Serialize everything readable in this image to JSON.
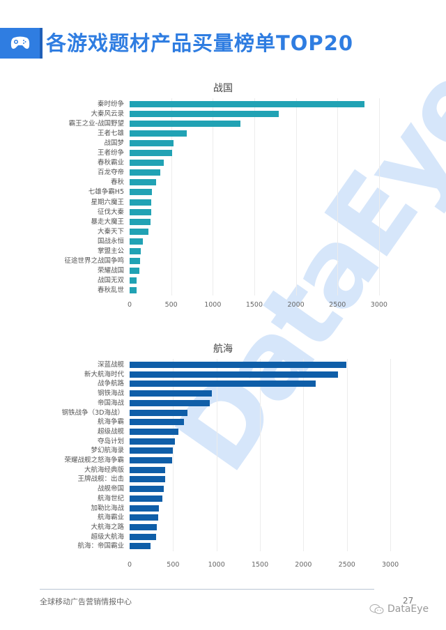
{
  "header": {
    "icon": "gamepad-icon",
    "title": "各游戏题材产品买量榜单TOP20",
    "accent_color": "#2f7de1"
  },
  "watermark": "DataEye",
  "chart_data": [
    {
      "type": "bar",
      "orientation": "horizontal",
      "title": "战国",
      "color": "#21a2b4",
      "xlim": [
        0,
        3000
      ],
      "xticks": [
        0,
        500,
        1000,
        1500,
        2000,
        2500,
        3000
      ],
      "grid": true,
      "categories": [
        "秦时纷争",
        "大秦风云录",
        "霸王之业-战国野望",
        "王者七雄",
        "战国梦",
        "王者纷争",
        "春秋霸业",
        "百龙夺帝",
        "春秋",
        "七雄争霸H5",
        "星期六魔王",
        "征伐大秦",
        "暴走大魔王",
        "大秦天下",
        "国战永恒",
        "掌盟主公",
        "征途世界之战国争鸣",
        "荣耀战国",
        "战国无双",
        "春秋乱世"
      ],
      "values": [
        2825,
        1794,
        1333,
        687,
        528,
        511,
        411,
        369,
        319,
        268,
        262,
        260,
        251,
        229,
        159,
        134,
        126,
        117,
        84,
        84
      ]
    },
    {
      "type": "bar",
      "orientation": "horizontal",
      "title": "航海",
      "color": "#0f5ea8",
      "xlim": [
        0,
        3000
      ],
      "xticks": [
        0,
        500,
        1000,
        1500,
        2000,
        2500,
        3000
      ],
      "grid": true,
      "categories": [
        "深蓝战舰",
        "新大航海时代",
        "战争航路",
        "钢铁海战",
        "帝国海战",
        "钢铁战争（3D海战）",
        "航海争霸",
        "超级战舰",
        "夺岛计划",
        "梦幻航海录",
        "荣耀战舰之怒海争霸",
        "大航海经典版",
        "王牌战舰：出击",
        "战舰帝国",
        "航海世纪",
        "加勒比海战",
        "航海霸业",
        "大航海之路",
        "超级大航海",
        "航海：帝国霸业"
      ],
      "values": [
        2494,
        2398,
        2141,
        946,
        922,
        666,
        626,
        561,
        521,
        497,
        489,
        409,
        409,
        393,
        377,
        337,
        329,
        313,
        305,
        241
      ]
    }
  ],
  "footer": {
    "text": "全球移动广告营销情报中心",
    "page_number": "27",
    "brand": "DataEye",
    "brand_icon": "wechat-icon"
  }
}
